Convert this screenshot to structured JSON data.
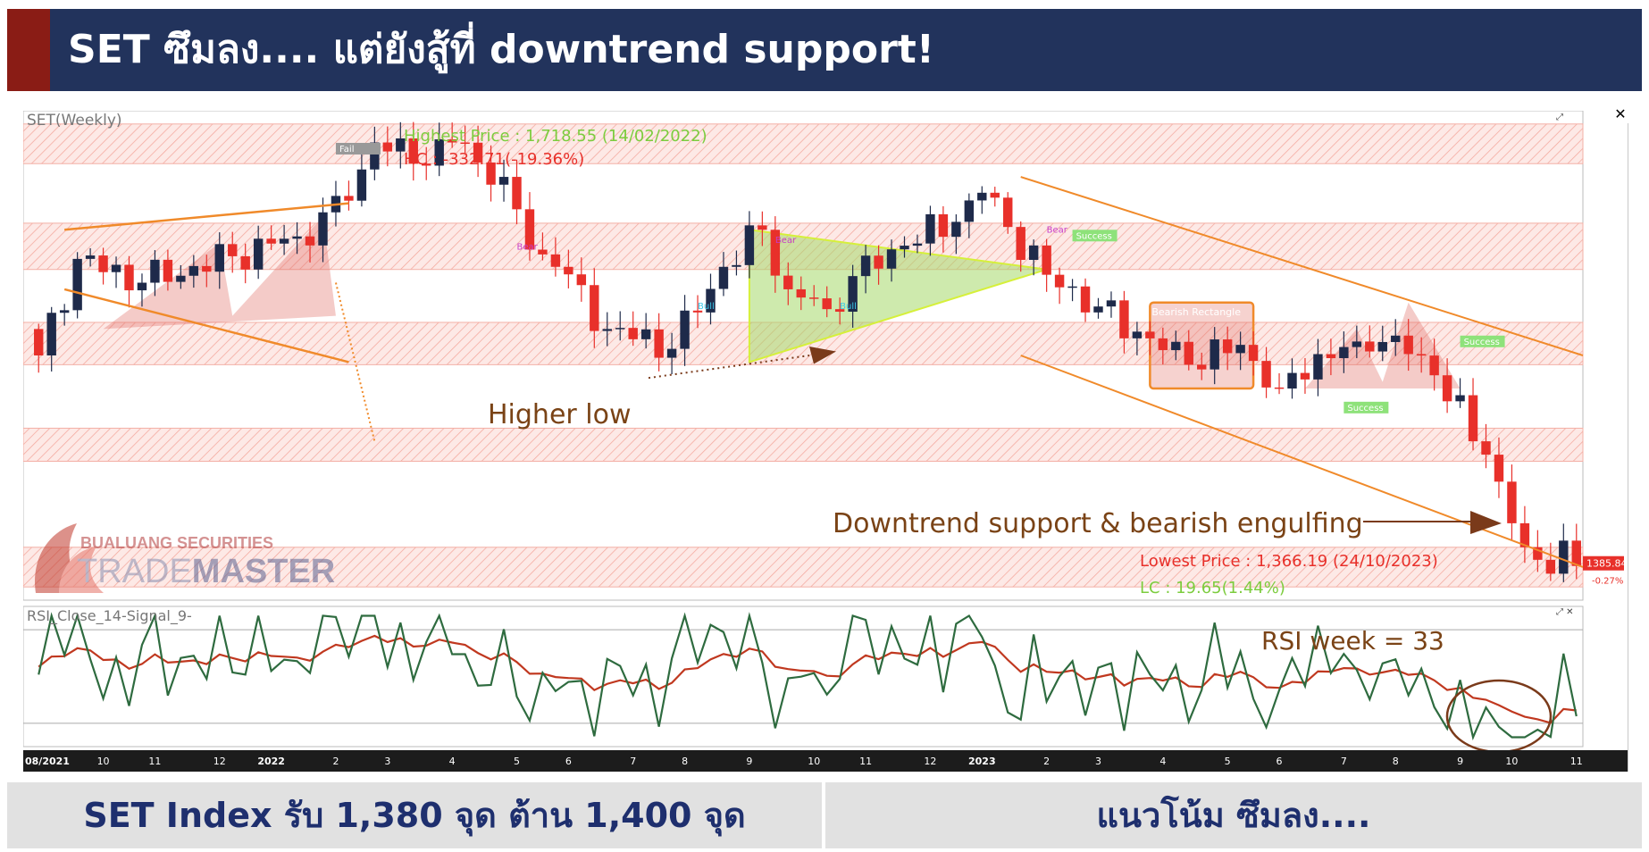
{
  "header": {
    "title": "SET ซึมลง.... แต่ยังสู้ที่ downtrend support!",
    "accent_color": "#8a1c15",
    "background_color": "#22335c"
  },
  "footer": {
    "left_text": "SET Index รับ 1,380 จุด ต้าน 1,400 จุด",
    "right_text": "แนวโน้ม ซึมลง...."
  },
  "logo": {
    "line1": "BUALUANG SECURITIES",
    "word1": "TRADE",
    "word2": "MASTER"
  },
  "price_panel": {
    "label": "SET(Weekly)",
    "highest_price_label": "Highest Price : 1,718.55 (14/02/2022)",
    "hc_label": "HC : -332.71(-19.36%)",
    "lowest_price_label": "Lowest Price : 1,366.19 (24/10/2023)",
    "lc_label": "LC : 19.65(1.44%)",
    "last_price": "1385.84",
    "last_change": "-0.27%",
    "annotation_higher_low": "Higher low",
    "annotation_downtrend": "Downtrend support & bearish engulfing",
    "pattern_bearish_rectangle": "Bearish Rectangle",
    "tag_success": "Success",
    "tag_bear": "Bear",
    "tag_bull": "Bull",
    "tag_failed": "Fail"
  },
  "rsi_panel": {
    "label": "RSI_Close_14-Signal_9-",
    "annotation": "RSI week = 33"
  },
  "x_axis": {
    "labels": [
      "08/2021",
      "10",
      "11",
      "12",
      "2022",
      "2",
      "3",
      "4",
      "5",
      "6",
      "7",
      "8",
      "9",
      "10",
      "11",
      "12",
      "2023",
      "2",
      "3",
      "4",
      "5",
      "6",
      "7",
      "8",
      "9",
      "10",
      "11"
    ]
  },
  "colors": {
    "up_candle": "#1e2a4a",
    "down_candle": "#e8302a",
    "resistance_zone": "#f2a39b",
    "trendline": "#f08a2a",
    "triangle_fill": "#a6d96a",
    "rsi_line": "#2e6b3f",
    "signal_line": "#c0381f",
    "annotation_text": "#7a4316",
    "footer_text": "#1e2f6e"
  },
  "chart_data": {
    "type": "candlestick",
    "title": "SET(Weekly)",
    "ylim": [
      1360,
      1730
    ],
    "weeks": 120,
    "start_close": 1565,
    "anchors": [
      {
        "week": 0,
        "close": 1545
      },
      {
        "week": 3,
        "close": 1618
      },
      {
        "week": 8,
        "close": 1600
      },
      {
        "week": 15,
        "close": 1620
      },
      {
        "week": 20,
        "close": 1635
      },
      {
        "week": 24,
        "close": 1662
      },
      {
        "week": 26,
        "close": 1706
      },
      {
        "week": 29,
        "close": 1690
      },
      {
        "week": 32,
        "close": 1706
      },
      {
        "week": 36,
        "close": 1680
      },
      {
        "week": 38,
        "close": 1625
      },
      {
        "week": 40,
        "close": 1612
      },
      {
        "week": 44,
        "close": 1565
      },
      {
        "week": 49,
        "close": 1550
      },
      {
        "week": 53,
        "close": 1612
      },
      {
        "week": 56,
        "close": 1640
      },
      {
        "week": 58,
        "close": 1595
      },
      {
        "week": 61,
        "close": 1580
      },
      {
        "week": 63,
        "close": 1605
      },
      {
        "week": 67,
        "close": 1628
      },
      {
        "week": 71,
        "close": 1646
      },
      {
        "week": 73,
        "close": 1668
      },
      {
        "week": 78,
        "close": 1606
      },
      {
        "week": 82,
        "close": 1582
      },
      {
        "week": 85,
        "close": 1563
      },
      {
        "week": 89,
        "close": 1538
      },
      {
        "week": 93,
        "close": 1553
      },
      {
        "week": 96,
        "close": 1520
      },
      {
        "week": 99,
        "close": 1546
      },
      {
        "week": 103,
        "close": 1548
      },
      {
        "week": 105,
        "close": 1560
      },
      {
        "week": 108,
        "close": 1530
      },
      {
        "week": 112,
        "close": 1470
      },
      {
        "week": 115,
        "close": 1400
      },
      {
        "week": 117,
        "close": 1380
      },
      {
        "week": 118,
        "close": 1405
      },
      {
        "week": 119,
        "close": 1385.84
      }
    ],
    "rsi_ylim": [
      20,
      80
    ],
    "rsi_reference_levels": [
      30,
      70
    ],
    "rsi_last": 33,
    "zones": [
      {
        "from": 1690,
        "to": 1720
      },
      {
        "from": 1610,
        "to": 1645
      },
      {
        "from": 1538,
        "to": 1570
      },
      {
        "from": 1465,
        "to": 1490
      },
      {
        "from": 1370,
        "to": 1400
      }
    ],
    "highest": 1718.55,
    "lowest": 1366.19,
    "last": 1385.84
  }
}
